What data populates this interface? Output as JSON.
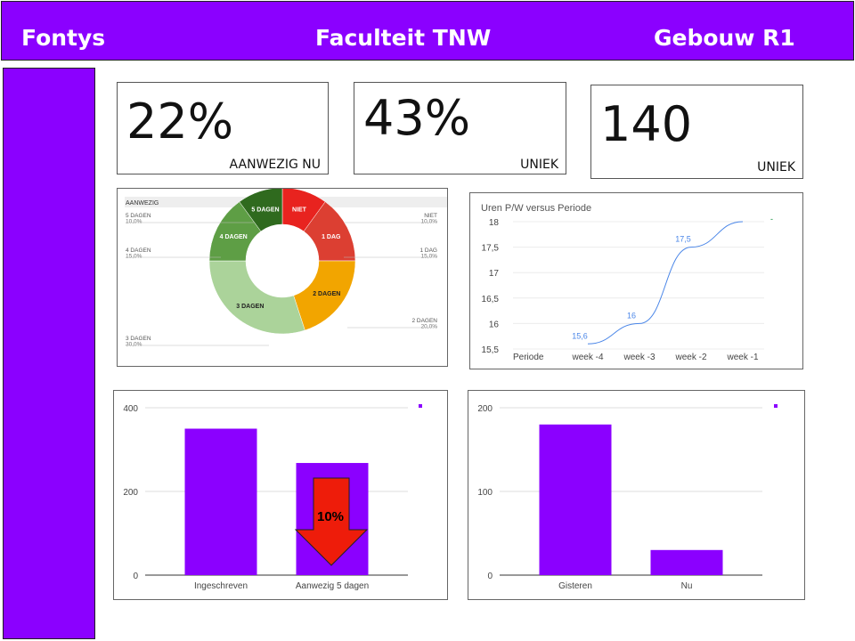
{
  "header": {
    "left": "Fontys",
    "center": "Faculteit TNW",
    "right": "Gebouw R1"
  },
  "kpis": [
    {
      "value": "22%",
      "label": "AANWEZIG NU"
    },
    {
      "value": "43%",
      "label": "UNIEK"
    },
    {
      "value": "140",
      "label": "UNIEK"
    }
  ],
  "chart_data": [
    {
      "type": "pie",
      "title": "AANWEZIG",
      "slices": [
        {
          "label": "NIET",
          "value": 10.0,
          "pct_label": "10,0%",
          "color": "#e8231f"
        },
        {
          "label": "1 DAG",
          "value": 15.0,
          "pct_label": "15,0%",
          "color": "#dc3f32"
        },
        {
          "label": "2 DAGEN",
          "value": 20.0,
          "pct_label": "20,0%",
          "color": "#f2a500"
        },
        {
          "label": "3 DAGEN",
          "value": 30.0,
          "pct_label": "30,0%",
          "color": "#abd39a"
        },
        {
          "label": "4 DAGEN",
          "value": 15.0,
          "pct_label": "15,0%",
          "color": "#5e9e45"
        },
        {
          "label": "5 DAGEN",
          "value": 10.0,
          "pct_label": "10,0%",
          "color": "#2f6a1e"
        }
      ]
    },
    {
      "type": "line",
      "title": "Uren P/W versus Periode",
      "xlabel": "Periode",
      "categories": [
        "week -4",
        "week -3",
        "week -2",
        "week -1"
      ],
      "values": [
        15.6,
        16,
        17.5,
        18
      ],
      "point_labels": [
        "15,6",
        "16",
        "17,5",
        ""
      ],
      "ylim": [
        15.5,
        18
      ],
      "yticks": [
        "15,5",
        "16",
        "16,5",
        "17",
        "17,5",
        "18"
      ],
      "color": "#4a86e8",
      "legend_text": "-"
    },
    {
      "type": "bar",
      "categories": [
        "Ingeschreven",
        "Aanwezig 5 dagen"
      ],
      "values": [
        350,
        268
      ],
      "ylim": [
        0,
        400
      ],
      "yticks": [
        0,
        200,
        400
      ],
      "color": "#8b00ff",
      "annotation": "10%"
    },
    {
      "type": "bar",
      "categories": [
        "Gisteren",
        "Nu"
      ],
      "values": [
        180,
        30
      ],
      "ylim": [
        0,
        200
      ],
      "yticks": [
        0,
        100,
        200
      ],
      "color": "#8b00ff"
    }
  ]
}
